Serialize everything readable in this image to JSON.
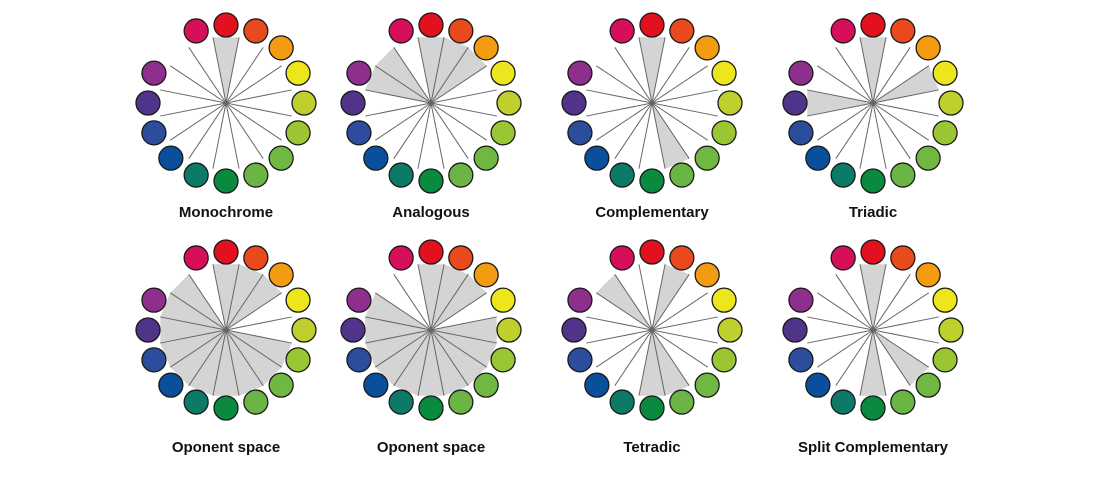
{
  "palette": [
    "#e3101f",
    "#e8491d",
    "#f39c12",
    "#ede61c",
    "#bfd02e",
    "#9bc634",
    "#71b843",
    "#6ab544",
    "#098a3e",
    "#0b7a66",
    "#0a4f9c",
    "#2b4d9b",
    "#51348a",
    "#8e2f8d",
    "#d70f5a"
  ],
  "highlight_color": "#d4d4d4",
  "wheels": [
    {
      "label": "Monochrome",
      "highlighted": [
        0
      ]
    },
    {
      "label": "Analogous",
      "highlighted": [
        14,
        0,
        1,
        2,
        13
      ]
    },
    {
      "label": "Complementary",
      "highlighted": [
        0,
        7
      ]
    },
    {
      "label": "Triadic",
      "highlighted": [
        0,
        3,
        12
      ]
    },
    {
      "label": "Oponent space",
      "highlighted": [
        14,
        0,
        1,
        2,
        5,
        6,
        7,
        8,
        9,
        10,
        11,
        12,
        13
      ]
    },
    {
      "label": "Oponent space",
      "highlighted": [
        13,
        0,
        1,
        2,
        4,
        5,
        6,
        7,
        8,
        9,
        10,
        11,
        12
      ]
    },
    {
      "label": "Tetradic",
      "highlighted": [
        14,
        1,
        7,
        8
      ]
    },
    {
      "label": "Split Complementary",
      "highlighted": [
        0,
        6,
        8
      ]
    }
  ]
}
